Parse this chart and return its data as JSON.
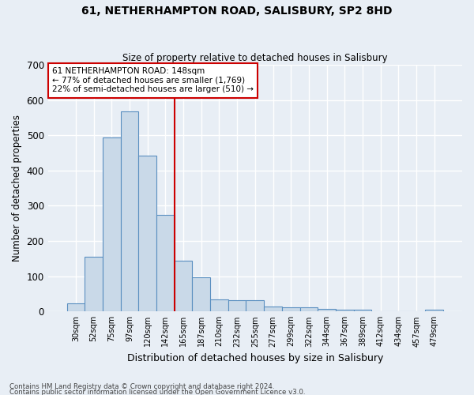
{
  "title": "61, NETHERHAMPTON ROAD, SALISBURY, SP2 8HD",
  "subtitle": "Size of property relative to detached houses in Salisbury",
  "xlabel": "Distribution of detached houses by size in Salisbury",
  "ylabel": "Number of detached properties",
  "footnote1": "Contains HM Land Registry data © Crown copyright and database right 2024.",
  "footnote2": "Contains public sector information licensed under the Open Government Licence v3.0.",
  "categories": [
    "30sqm",
    "52sqm",
    "75sqm",
    "97sqm",
    "120sqm",
    "142sqm",
    "165sqm",
    "187sqm",
    "210sqm",
    "232sqm",
    "255sqm",
    "277sqm",
    "299sqm",
    "322sqm",
    "344sqm",
    "367sqm",
    "389sqm",
    "412sqm",
    "434sqm",
    "457sqm",
    "479sqm"
  ],
  "values": [
    22,
    155,
    495,
    567,
    443,
    275,
    145,
    97,
    35,
    33,
    32,
    15,
    13,
    11,
    8,
    5,
    5,
    0,
    0,
    0,
    6
  ],
  "bar_color": "#c9d9e8",
  "bar_edge_color": "#5a8fc0",
  "background_color": "#e8eef5",
  "grid_color": "#ffffff",
  "vline_x": 5.5,
  "vline_color": "#cc0000",
  "annotation_line1": "61 NETHERHAMPTON ROAD: 148sqm",
  "annotation_line2": "← 77% of detached houses are smaller (1,769)",
  "annotation_line3": "22% of semi-detached houses are larger (510) →",
  "ylim": [
    0,
    700
  ],
  "yticks": [
    0,
    100,
    200,
    300,
    400,
    500,
    600,
    700
  ]
}
